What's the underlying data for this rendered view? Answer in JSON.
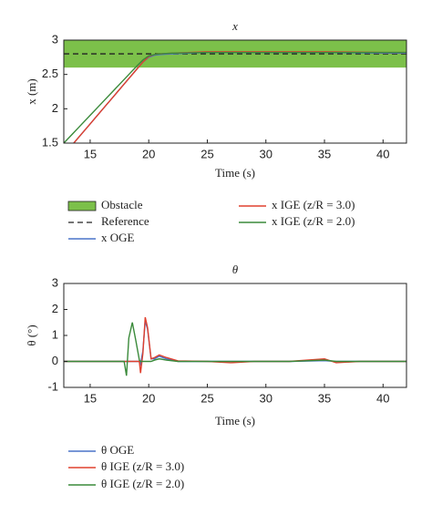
{
  "chart_data": [
    {
      "type": "line",
      "title": "x",
      "xlabel": "Time (s)",
      "ylabel": "x (m)",
      "x": [
        12.75,
        13,
        13.6,
        14,
        15,
        16,
        17,
        18,
        19,
        19.5,
        20,
        20.5,
        21,
        22,
        25,
        30,
        35,
        40,
        42
      ],
      "series": [
        {
          "name": "x OGE",
          "color": "#4a74c9",
          "values": [
            null,
            null,
            1.5,
            1.58,
            1.78,
            1.98,
            2.18,
            2.38,
            2.58,
            2.68,
            2.75,
            2.78,
            2.79,
            2.8,
            2.82,
            2.82,
            2.82,
            2.81,
            2.81
          ]
        },
        {
          "name": "x IGE (z/R = 3.0)",
          "color": "#e0402e",
          "values": [
            null,
            null,
            1.5,
            1.58,
            1.78,
            1.98,
            2.18,
            2.38,
            2.58,
            2.68,
            2.76,
            2.79,
            2.8,
            2.81,
            2.83,
            2.83,
            2.83,
            2.82,
            2.82
          ]
        },
        {
          "name": "x IGE (z/R = 2.0)",
          "color": "#3a8a3a",
          "values": [
            1.5,
            1.545,
            1.653,
            1.725,
            1.905,
            2.085,
            2.265,
            2.445,
            2.625,
            2.71,
            2.77,
            2.79,
            2.8,
            2.81,
            2.82,
            2.82,
            2.82,
            2.82,
            2.82
          ]
        }
      ],
      "bands": [
        {
          "name": "Obstacle",
          "color": "#7cc04a",
          "range": [
            2.6,
            3
          ]
        }
      ],
      "reference": {
        "name": "Reference",
        "value": 2.8
      },
      "xlim": [
        12.75,
        42
      ],
      "ylim": [
        1.5,
        3
      ],
      "xticks": [
        15,
        20,
        25,
        30,
        35,
        40
      ],
      "yticks": [
        1.5,
        2,
        2.5,
        3
      ]
    },
    {
      "type": "line",
      "title": "θ",
      "xlabel": "Time (s)",
      "ylabel": "θ (°)",
      "x": [
        12.75,
        17.9,
        18.1,
        18.3,
        18.6,
        18.9,
        19.2,
        19.3,
        19.5,
        19.7,
        19.9,
        20.2,
        20.5,
        20.9,
        21.5,
        22.5,
        25,
        27,
        29,
        32,
        35,
        36,
        38,
        42
      ],
      "series": [
        {
          "name": "θ OGE",
          "color": "#4a74c9",
          "values": [
            0,
            0,
            0,
            0,
            0,
            0,
            0,
            -0.1,
            0.4,
            1.55,
            1.25,
            0.1,
            0.1,
            0.2,
            0.1,
            0,
            0,
            0,
            0,
            0,
            0.03,
            0,
            0,
            0
          ]
        },
        {
          "name": "θ IGE (z/R = 3.0)",
          "color": "#e0402e",
          "values": [
            0,
            0,
            0,
            0,
            0,
            0,
            0,
            -0.45,
            0.3,
            1.7,
            1.3,
            0.1,
            0.15,
            0.25,
            0.15,
            0.02,
            0,
            -0.05,
            0,
            0,
            0.1,
            -0.05,
            0,
            0
          ]
        },
        {
          "name": "θ IGE (z/R = 2.0)",
          "color": "#3a8a3a",
          "values": [
            0,
            0,
            -0.55,
            0.9,
            1.5,
            0.8,
            0.05,
            0,
            0,
            0,
            0,
            0,
            0.05,
            0.1,
            0.05,
            0,
            0,
            0,
            0,
            0,
            0.05,
            0,
            0,
            0
          ]
        }
      ],
      "xlim": [
        12.75,
        42
      ],
      "ylim": [
        -1,
        3
      ],
      "xticks": [
        15,
        20,
        25,
        30,
        35,
        40
      ],
      "yticks": [
        -1,
        0,
        1,
        2,
        3
      ]
    }
  ]
}
